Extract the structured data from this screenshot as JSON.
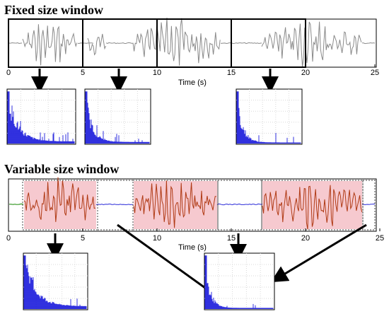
{
  "fixed": {
    "heading": "Fixed size window",
    "x_ticks": [
      "0",
      "5",
      "10",
      "15",
      "20",
      "25"
    ],
    "xlabel": "Time (s)"
  },
  "variable": {
    "heading": "Variable size window",
    "x_ticks": [
      "0",
      "5",
      "10",
      "15",
      "20",
      "25"
    ],
    "xlabel": "Time (s)"
  },
  "colors": {
    "signal_gray": "#8a8a8a",
    "spectrum_blue": "#1a1adc",
    "active_segment": "#b03a14",
    "active_fill": "#f6c9cf",
    "quiet_segment_blue": "#2a2ad8",
    "quiet_segment_green": "#3a9a2a",
    "grid": "#d8d8d8"
  }
}
